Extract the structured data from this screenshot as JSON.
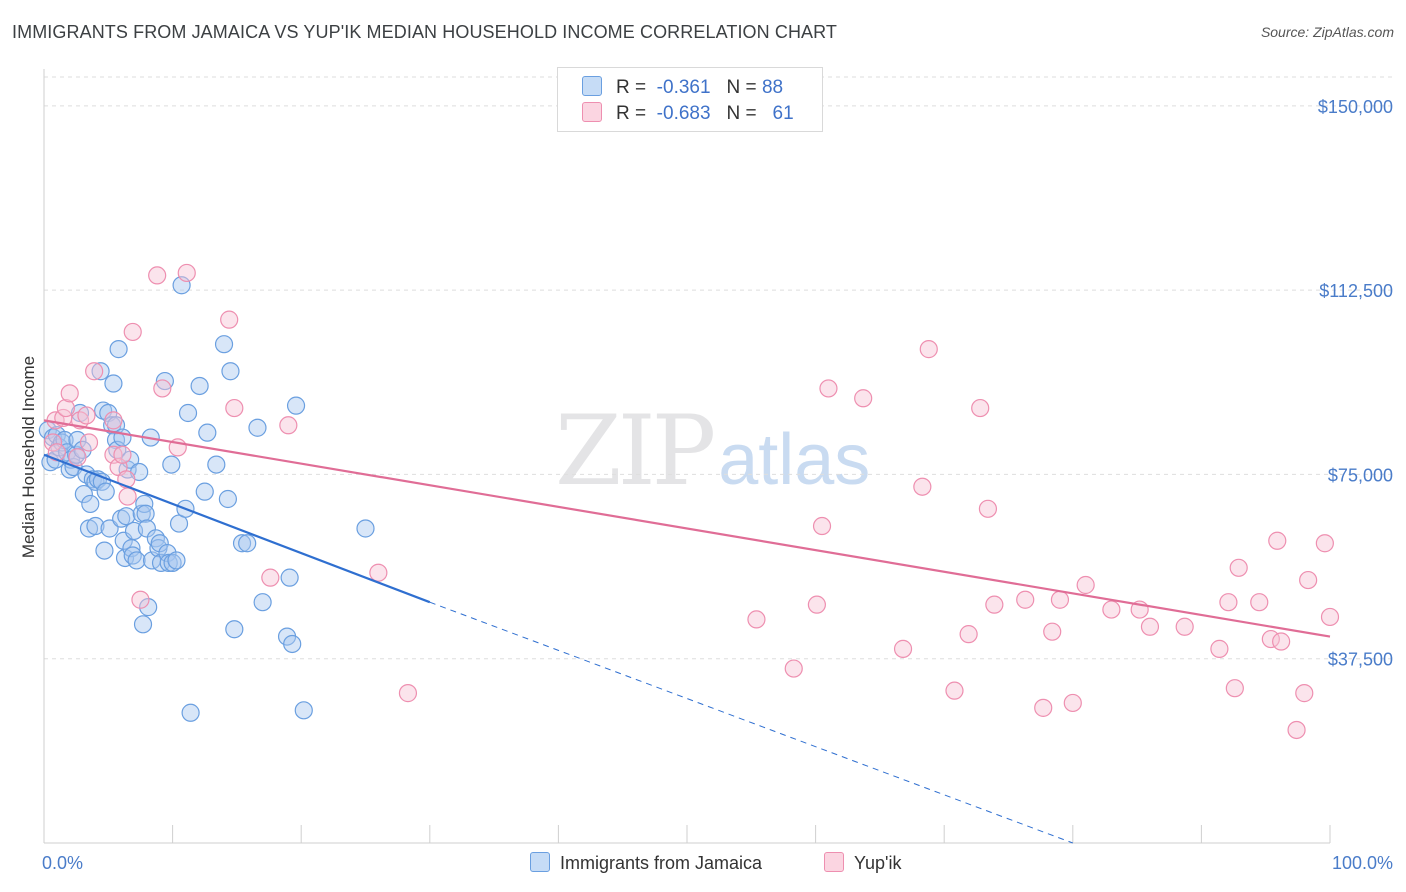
{
  "title": "IMMIGRANTS FROM JAMAICA VS YUP'IK MEDIAN HOUSEHOLD INCOME CORRELATION CHART",
  "source": "Source: ZipAtlas.com",
  "watermark": {
    "zip": "ZIP",
    "atlas": "atlas"
  },
  "legend_top": {
    "rows": [
      {
        "r_label": "R =",
        "r_value": "-0.361",
        "n_label": "N =",
        "n_value": "88",
        "color": "#9ec1ec"
      },
      {
        "r_label": "R =",
        "r_value": "-0.683",
        "n_label": "N =",
        "n_value": "61",
        "color": "#f5b3c8"
      }
    ]
  },
  "chart_data": {
    "type": "scatter",
    "title": "IMMIGRANTS FROM JAMAICA VS YUP'IK MEDIAN HOUSEHOLD INCOME CORRELATION CHART",
    "xlabel": "",
    "ylabel": "Median Household Income",
    "xlim": [
      0,
      100
    ],
    "ylim": [
      0,
      157500
    ],
    "x_tick_labels": [
      "0.0%",
      "100.0%"
    ],
    "y_ticks": [
      37500,
      75000,
      112500,
      150000
    ],
    "y_tick_labels": [
      "$37,500",
      "$75,000",
      "$112,500",
      "$150,000"
    ],
    "grid": true,
    "legend_position": "bottom",
    "series": [
      {
        "name": "Immigrants from Jamaica",
        "color": "#6a9fe0",
        "fill": "#a9c8ef",
        "trend": {
          "x": [
            0,
            30
          ],
          "y": [
            79000,
            49000
          ],
          "color": "#2f6fd0"
        },
        "trend_extension": {
          "x": [
            30,
            80
          ],
          "y": [
            49000,
            -1000
          ]
        },
        "points": [
          [
            0.3,
            84000
          ],
          [
            0.5,
            77500
          ],
          [
            0.7,
            82500
          ],
          [
            0.9,
            78000
          ],
          [
            1.0,
            83000
          ],
          [
            1.2,
            80500
          ],
          [
            1.4,
            81500
          ],
          [
            1.6,
            82000
          ],
          [
            1.8,
            79500
          ],
          [
            2.0,
            76000
          ],
          [
            2.1,
            78000
          ],
          [
            2.3,
            76500
          ],
          [
            2.5,
            79000
          ],
          [
            2.6,
            82000
          ],
          [
            2.8,
            87500
          ],
          [
            3.0,
            80000
          ],
          [
            3.1,
            71000
          ],
          [
            3.3,
            75000
          ],
          [
            3.5,
            64000
          ],
          [
            3.6,
            69000
          ],
          [
            3.8,
            74000
          ],
          [
            4.0,
            73500
          ],
          [
            4.0,
            64500
          ],
          [
            4.2,
            74000
          ],
          [
            4.4,
            96000
          ],
          [
            4.5,
            73500
          ],
          [
            4.6,
            88000
          ],
          [
            4.7,
            59500
          ],
          [
            4.8,
            71500
          ],
          [
            5.0,
            87500
          ],
          [
            5.1,
            64000
          ],
          [
            5.3,
            85000
          ],
          [
            5.4,
            93500
          ],
          [
            5.6,
            85000
          ],
          [
            5.6,
            82000
          ],
          [
            5.7,
            80000
          ],
          [
            5.8,
            100500
          ],
          [
            6.0,
            66000
          ],
          [
            6.1,
            82500
          ],
          [
            6.2,
            61500
          ],
          [
            6.3,
            58000
          ],
          [
            6.4,
            66500
          ],
          [
            6.5,
            76000
          ],
          [
            6.7,
            78000
          ],
          [
            6.8,
            60000
          ],
          [
            6.9,
            58500
          ],
          [
            7.0,
            63500
          ],
          [
            7.2,
            57500
          ],
          [
            7.4,
            75500
          ],
          [
            7.6,
            67000
          ],
          [
            7.7,
            44500
          ],
          [
            7.8,
            69000
          ],
          [
            7.9,
            67000
          ],
          [
            8.0,
            64000
          ],
          [
            8.1,
            48000
          ],
          [
            8.3,
            82500
          ],
          [
            8.4,
            57500
          ],
          [
            8.7,
            62000
          ],
          [
            8.9,
            60000
          ],
          [
            9.0,
            61000
          ],
          [
            9.1,
            57000
          ],
          [
            9.4,
            94000
          ],
          [
            9.6,
            59000
          ],
          [
            9.7,
            57000
          ],
          [
            9.9,
            77000
          ],
          [
            10.0,
            57000
          ],
          [
            10.3,
            57500
          ],
          [
            10.5,
            65000
          ],
          [
            10.7,
            113500
          ],
          [
            11.0,
            68000
          ],
          [
            11.2,
            87500
          ],
          [
            11.4,
            26500
          ],
          [
            12.1,
            93000
          ],
          [
            12.5,
            71500
          ],
          [
            12.7,
            83500
          ],
          [
            13.4,
            77000
          ],
          [
            14.0,
            101500
          ],
          [
            14.3,
            70000
          ],
          [
            14.5,
            96000
          ],
          [
            14.8,
            43500
          ],
          [
            15.4,
            61000
          ],
          [
            15.8,
            61000
          ],
          [
            16.6,
            84500
          ],
          [
            17.0,
            49000
          ],
          [
            18.9,
            42000
          ],
          [
            19.1,
            54000
          ],
          [
            19.3,
            40500
          ],
          [
            19.6,
            89000
          ],
          [
            20.2,
            27000
          ],
          [
            25.0,
            64000
          ]
        ]
      },
      {
        "name": "Yup'ik",
        "color": "#ee8fb0",
        "fill": "#f7c3d4",
        "trend": {
          "x": [
            0,
            100
          ],
          "y": [
            86000,
            42000
          ],
          "color": "#e06d96"
        },
        "points": [
          [
            0.7,
            81500
          ],
          [
            0.9,
            86000
          ],
          [
            1.0,
            79500
          ],
          [
            1.5,
            86500
          ],
          [
            1.7,
            88500
          ],
          [
            2.0,
            91500
          ],
          [
            2.6,
            78500
          ],
          [
            2.8,
            86000
          ],
          [
            3.3,
            87000
          ],
          [
            3.5,
            81500
          ],
          [
            3.9,
            96000
          ],
          [
            5.4,
            86000
          ],
          [
            5.4,
            79000
          ],
          [
            5.8,
            76500
          ],
          [
            6.1,
            79000
          ],
          [
            6.4,
            74000
          ],
          [
            6.5,
            70500
          ],
          [
            6.9,
            104000
          ],
          [
            7.5,
            49500
          ],
          [
            8.8,
            115500
          ],
          [
            9.2,
            92500
          ],
          [
            10.4,
            80500
          ],
          [
            11.1,
            116000
          ],
          [
            14.4,
            106500
          ],
          [
            14.8,
            88500
          ],
          [
            17.6,
            54000
          ],
          [
            19.0,
            85000
          ],
          [
            26.0,
            55000
          ],
          [
            28.3,
            30500
          ],
          [
            55.4,
            45500
          ],
          [
            58.3,
            35500
          ],
          [
            60.1,
            48500
          ],
          [
            60.5,
            64500
          ],
          [
            61.0,
            92500
          ],
          [
            63.7,
            90500
          ],
          [
            66.8,
            39500
          ],
          [
            68.3,
            72500
          ],
          [
            68.8,
            100500
          ],
          [
            70.8,
            31000
          ],
          [
            71.9,
            42500
          ],
          [
            72.8,
            88500
          ],
          [
            73.4,
            68000
          ],
          [
            73.9,
            48500
          ],
          [
            76.3,
            49500
          ],
          [
            77.7,
            27500
          ],
          [
            78.4,
            43000
          ],
          [
            79.0,
            49500
          ],
          [
            80.0,
            28500
          ],
          [
            81.0,
            52500
          ],
          [
            83.0,
            47500
          ],
          [
            85.2,
            47500
          ],
          [
            86.0,
            44000
          ],
          [
            88.7,
            44000
          ],
          [
            91.4,
            39500
          ],
          [
            92.1,
            49000
          ],
          [
            92.9,
            56000
          ],
          [
            92.6,
            31500
          ],
          [
            94.5,
            49000
          ],
          [
            95.4,
            41500
          ],
          [
            95.9,
            61500
          ],
          [
            96.2,
            41000
          ],
          [
            97.4,
            23000
          ],
          [
            98.0,
            30500
          ],
          [
            98.3,
            53500
          ],
          [
            99.6,
            61000
          ],
          [
            100.0,
            46000
          ]
        ]
      }
    ]
  },
  "legend_bottom": {
    "items": [
      {
        "label": "Immigrants from Jamaica",
        "color": "#a9c8ef",
        "border": "#6a9fe0"
      },
      {
        "label": "Yup'ik",
        "color": "#f7c3d4",
        "border": "#ee8fb0"
      }
    ]
  }
}
